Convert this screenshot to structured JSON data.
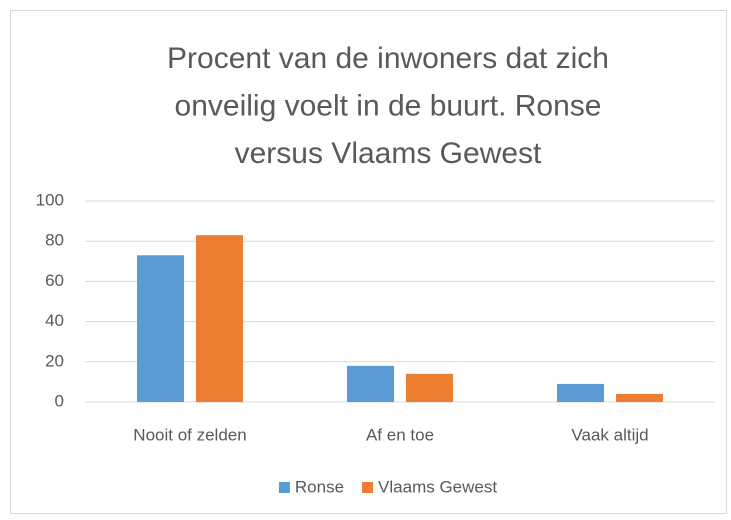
{
  "chart_data": {
    "type": "bar",
    "title": "Procent van de inwoners dat zich onveilig voelt in de buurt. Ronse versus Vlaams Gewest",
    "categories": [
      "Nooit of zelden",
      "Af en toe",
      "Vaak altijd"
    ],
    "series": [
      {
        "name": "Ronse",
        "color": "#5b9bd5",
        "values": [
          73,
          18,
          9
        ]
      },
      {
        "name": "Vlaams Gewest",
        "color": "#ed7d31",
        "values": [
          83,
          14,
          4
        ]
      }
    ],
    "ylim": [
      0,
      100
    ],
    "yticks": [
      0,
      20,
      40,
      60,
      80,
      100
    ],
    "grid": true,
    "legend": "bottom"
  }
}
